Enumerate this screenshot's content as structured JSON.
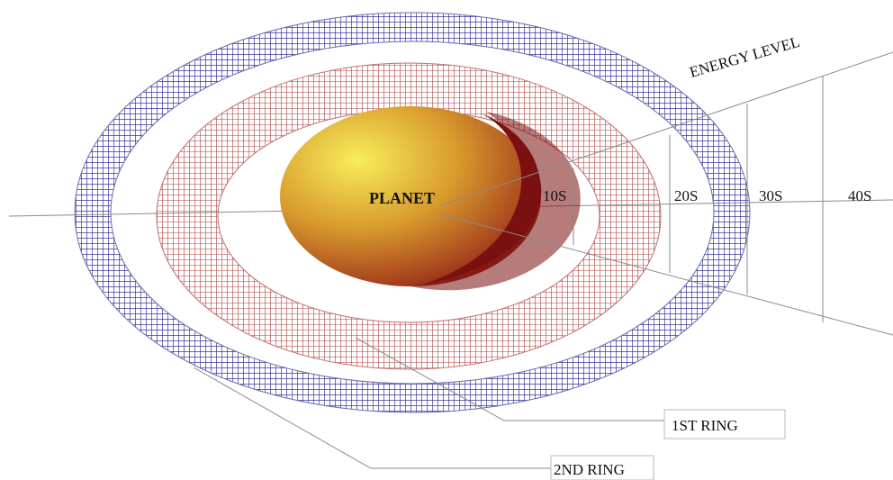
{
  "labels": {
    "planet": "PLANET",
    "energy_level": "ENERGY LEVEL",
    "first_ring": "1ST RING",
    "second_ring": "2ND RING"
  },
  "time_markers": [
    "10S",
    "20S",
    "30S",
    "40S"
  ],
  "colors": {
    "outer_ring_grid": "#3a3aa0",
    "inner_ring_grid": "#b04040",
    "planet_highlight": "#f7ee5a",
    "planet_mid": "#d89a2c",
    "planet_shadow": "#7a1010",
    "line": "#8a8a8a"
  }
}
